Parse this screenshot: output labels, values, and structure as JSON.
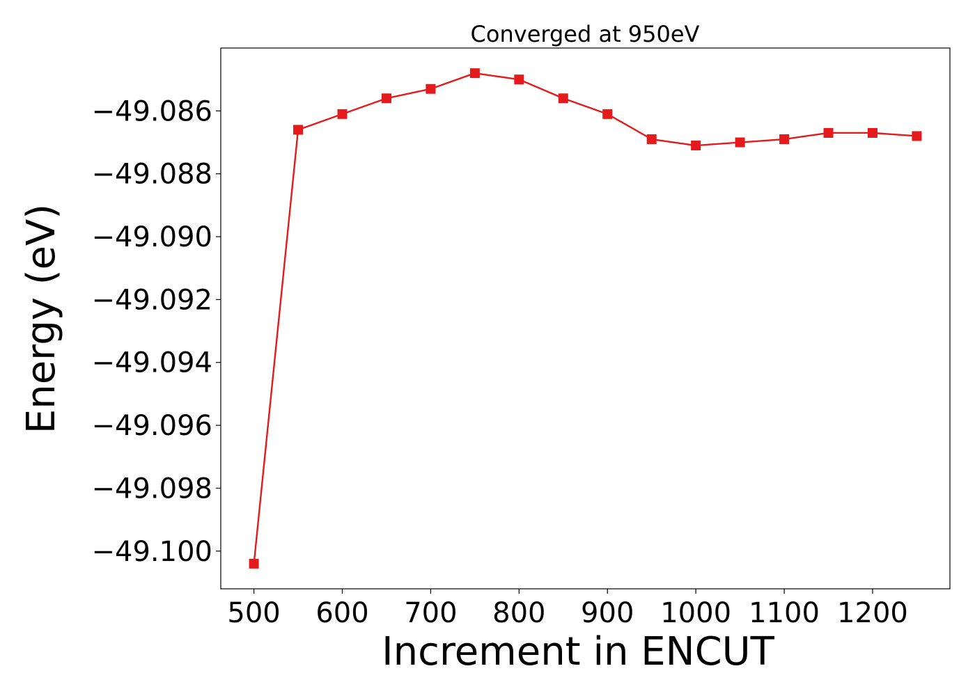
{
  "chart_data": {
    "type": "line",
    "title": "Converged at 950eV",
    "xlabel": "Increment in ENCUT",
    "ylabel": "Energy (eV)",
    "x": [
      500,
      550,
      600,
      650,
      700,
      750,
      800,
      850,
      900,
      950,
      1000,
      1050,
      1100,
      1150,
      1200,
      1250
    ],
    "series": [
      {
        "color": "#e41a1c",
        "marker": "square",
        "values": [
          -49.1004,
          -49.0866,
          -49.0861,
          -49.0856,
          -49.0853,
          -49.0848,
          -49.085,
          -49.0856,
          -49.0861,
          -49.0869,
          -49.0871,
          -49.087,
          -49.0869,
          -49.0867,
          -49.0867,
          -49.0868
        ]
      }
    ],
    "xlim": [
      462.5,
      1287.5
    ],
    "ylim": [
      -49.1012,
      -49.084
    ],
    "xticks": [
      500,
      600,
      700,
      800,
      900,
      1000,
      1100,
      1200
    ],
    "xtick_labels": [
      "500",
      "600",
      "700",
      "800",
      "900",
      "1000",
      "1100",
      "1200"
    ],
    "yticks": [
      -49.1,
      -49.098,
      -49.096,
      -49.094,
      -49.092,
      -49.09,
      -49.088,
      -49.086
    ],
    "ytick_labels": [
      "−49.100",
      "−49.098",
      "−49.096",
      "−49.094",
      "−49.092",
      "−49.090",
      "−49.088",
      "−49.086"
    ],
    "grid": false
  }
}
